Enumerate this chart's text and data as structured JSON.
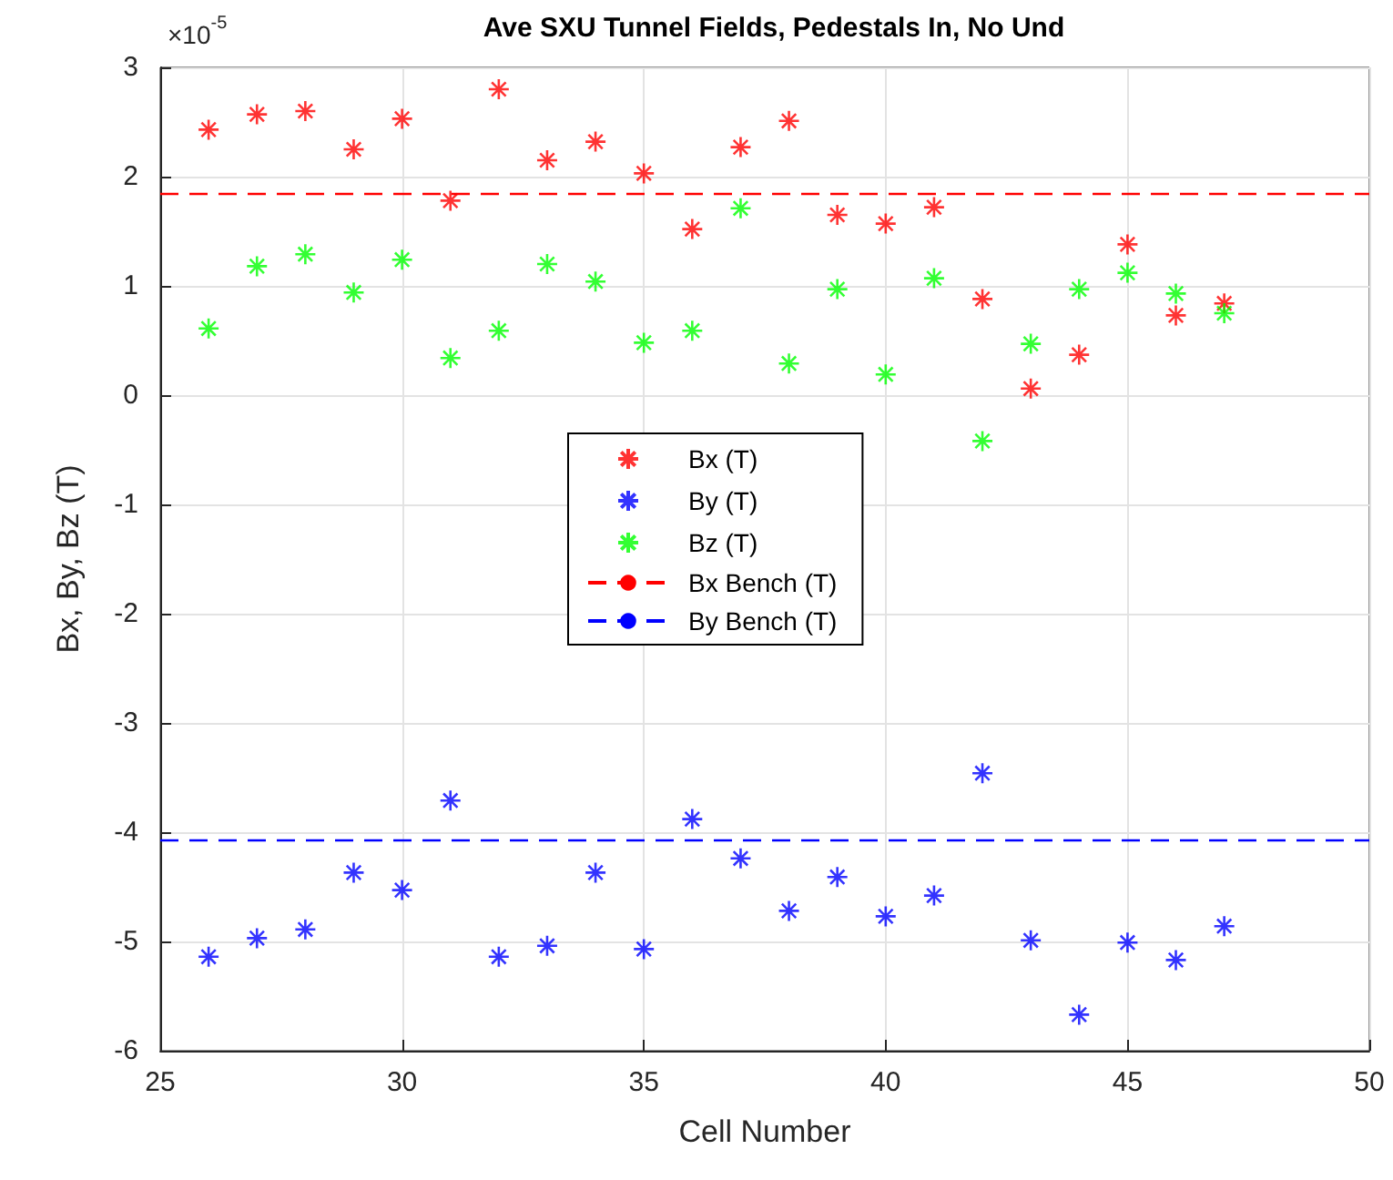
{
  "chart_data": {
    "type": "scatter",
    "title": "Ave SXU Tunnel Fields, Pedestals In, No Und",
    "xlabel": "Cell Number",
    "ylabel": "Bx, By, Bz (T)",
    "annotations": [
      "×10$^{-5}$"
    ],
    "x": [
      26,
      27,
      28,
      29,
      30,
      31,
      32,
      33,
      34,
      35,
      36,
      37,
      38,
      39,
      40,
      41,
      42,
      43,
      44,
      45,
      46,
      47
    ],
    "series": [
      {
        "name": "Bx (T)",
        "color": "#ff0000",
        "values": [
          2.43,
          2.57,
          2.6,
          2.25,
          2.53,
          1.78,
          2.8,
          2.15,
          2.32,
          2.03,
          1.52,
          2.27,
          2.51,
          1.65,
          1.57,
          1.72,
          0.88,
          0.06,
          0.37,
          1.38,
          0.73,
          0.84
        ]
      },
      {
        "name": "By (T)",
        "color": "#0000ff",
        "values": [
          -5.14,
          -4.97,
          -4.89,
          -4.37,
          -4.53,
          -3.71,
          -5.14,
          -5.04,
          -4.37,
          -5.07,
          -3.88,
          -4.24,
          -4.72,
          -4.41,
          -4.77,
          -4.58,
          -3.46,
          -4.99,
          -5.67,
          -5.01,
          -5.17,
          -4.86
        ]
      },
      {
        "name": "Bz (T)",
        "color": "#00ff00",
        "values": [
          0.61,
          1.18,
          1.29,
          0.94,
          1.24,
          0.34,
          0.59,
          1.2,
          1.04,
          0.48,
          0.59,
          1.71,
          0.29,
          0.97,
          0.19,
          1.07,
          -0.42,
          0.47,
          0.97,
          1.12,
          0.93,
          0.75
        ]
      }
    ],
    "ref_lines": [
      {
        "axis": "y",
        "value": 1.84,
        "label": "Bx Bench (T)",
        "color": "#ff0000",
        "line_style": "dashed"
      },
      {
        "axis": "y",
        "value": -4.07,
        "label": "By Bench (T)",
        "color": "#0000ff",
        "line_style": "dashed"
      }
    ],
    "xlim": [
      25,
      50
    ],
    "xticks": [
      25,
      30,
      35,
      40,
      45,
      50
    ],
    "ylim": [
      -6,
      3
    ],
    "yticks": [
      -6,
      -5,
      -4,
      -3,
      -2,
      -1,
      0,
      1,
      2,
      3
    ],
    "grid": true,
    "legend": "center",
    "marker": "cross"
  }
}
